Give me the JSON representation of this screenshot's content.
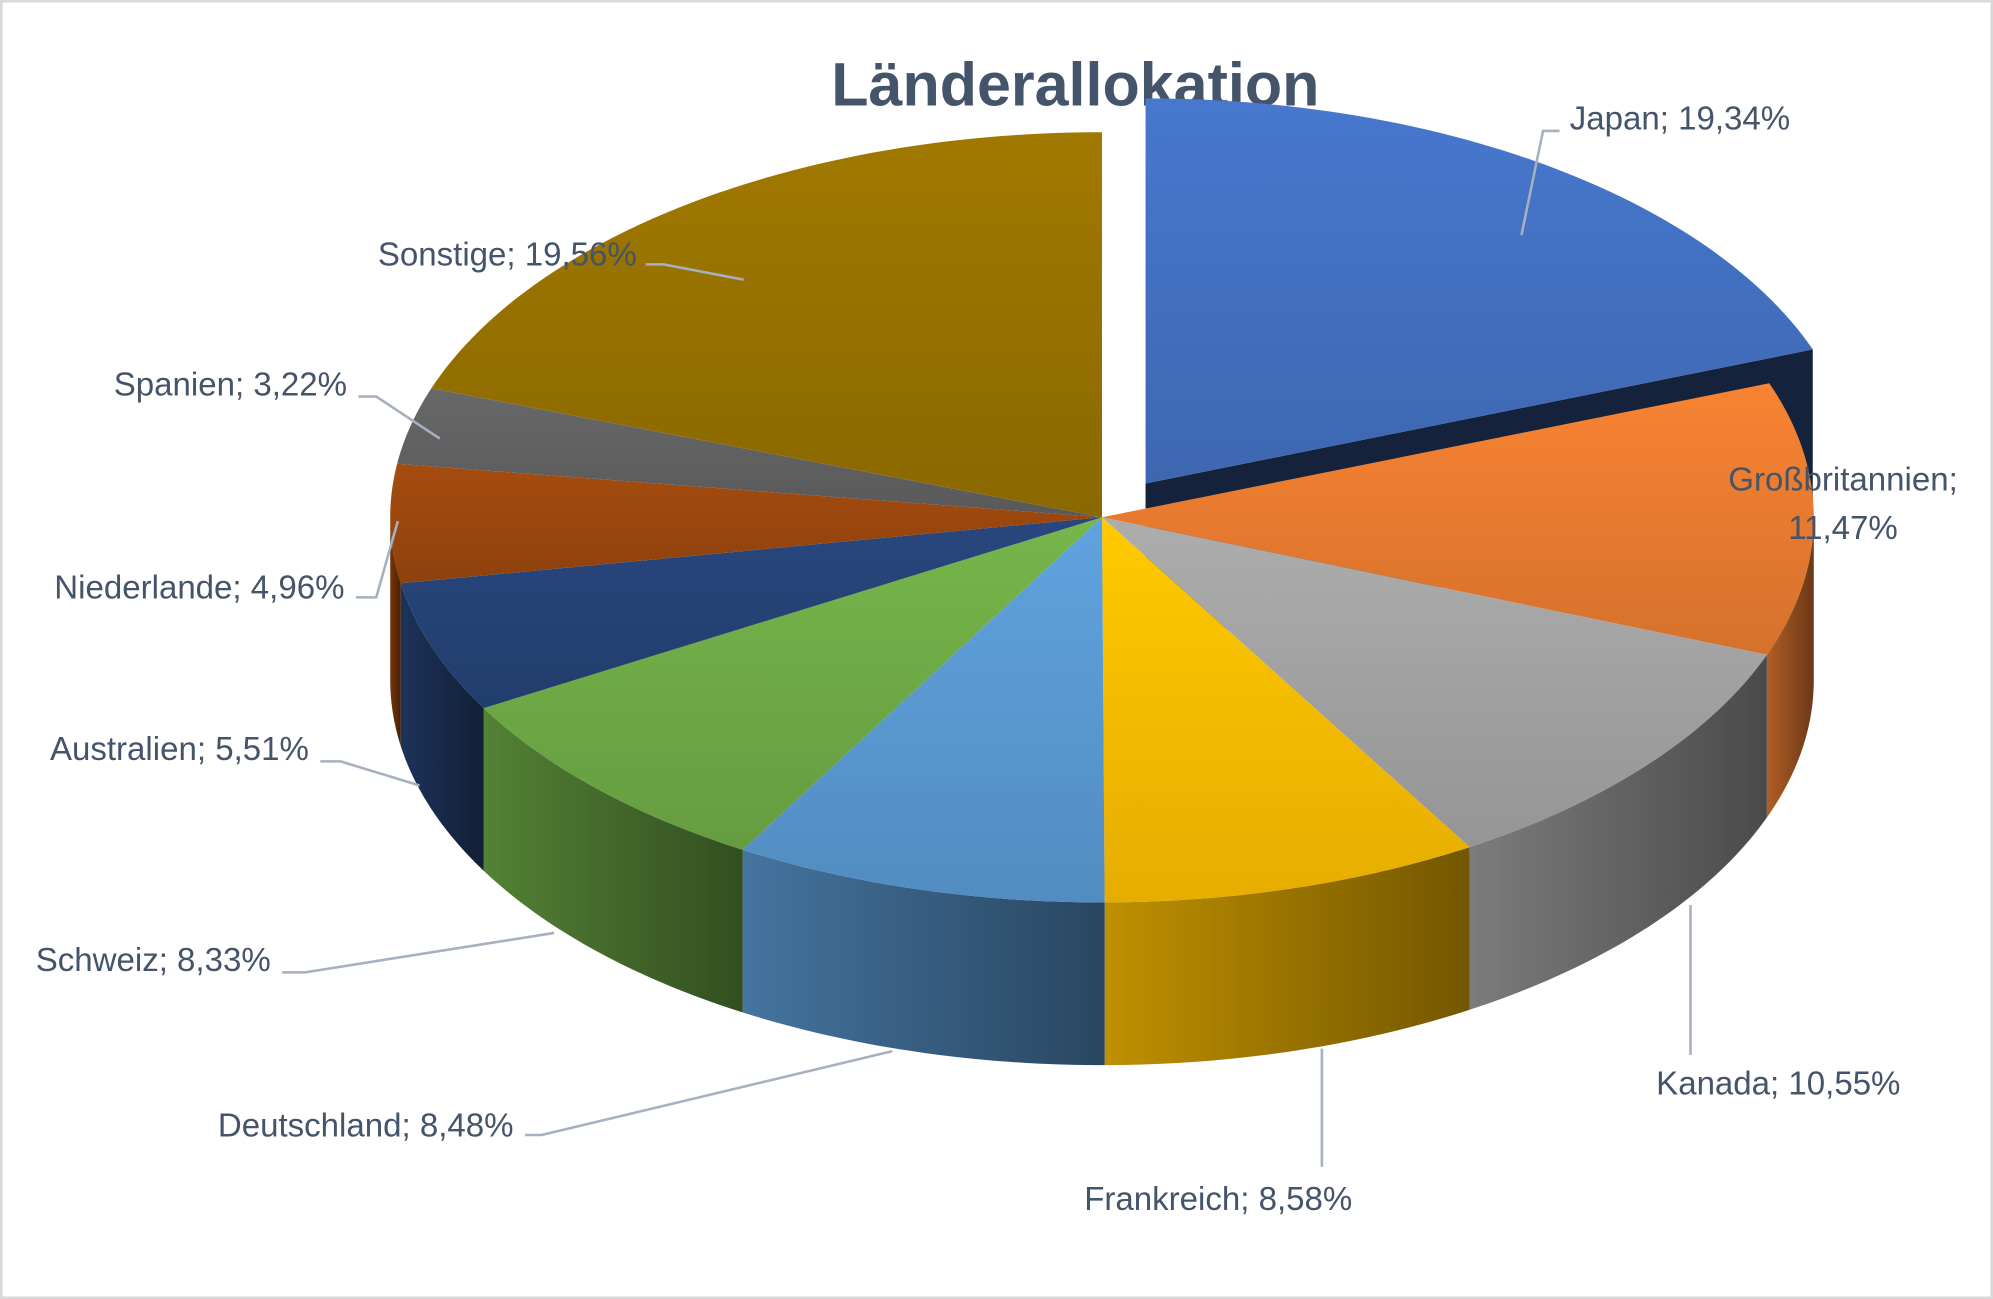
{
  "chart_data": {
    "type": "pie",
    "style": "3d-exploded",
    "title": "Länderallokation",
    "categories": [
      "Japan",
      "Großbritannien",
      "Kanada",
      "Frankreich",
      "Deutschland",
      "Schweiz",
      "Australien",
      "Niederlande",
      "Spanien",
      "Sonstige"
    ],
    "values": [
      19.34,
      11.47,
      10.55,
      8.58,
      8.48,
      8.33,
      5.51,
      4.96,
      3.22,
      19.56
    ],
    "unit": "%",
    "data_labels": [
      "Japan; 19,34%",
      "Großbritannien; 11,47%",
      "Kanada; 10,55%",
      "Frankreich; 8,58%",
      "Deutschland; 8,48%",
      "Schweiz; 8,33%",
      "Australien; 5,51%",
      "Niederlande; 4,96%",
      "Spanien; 3,22%",
      "Sonstige; 19,56%"
    ],
    "colors": [
      "#4472C4",
      "#ED7D31",
      "#A5A5A5",
      "#FFC000",
      "#5B9BD5",
      "#70AD47",
      "#264478",
      "#9E480E",
      "#636363",
      "#997300"
    ],
    "exploded": [
      "Japan"
    ],
    "legend": "none"
  }
}
